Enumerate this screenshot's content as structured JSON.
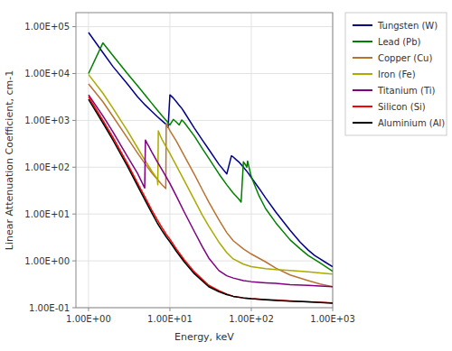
{
  "chart_data": {
    "type": "line",
    "xlabel": "Energy, keV",
    "ylabel": "Linear Attenuation Coefficient, cm-1",
    "log": true,
    "grid": true,
    "legend": "right",
    "xlim": [
      0.699842,
      1000
    ],
    "ylim": [
      0.1,
      199526.23
    ],
    "xticks": [
      {
        "value": 1,
        "label": "1.00E+00"
      },
      {
        "value": 10,
        "label": "1.00E+01"
      },
      {
        "value": 100,
        "label": "1.00E+02"
      },
      {
        "value": 1000,
        "label": "1.00E+03"
      }
    ],
    "yticks": [
      {
        "value": 0.1,
        "label": "1.00E-01"
      },
      {
        "value": 1,
        "label": "1.00E+00"
      },
      {
        "value": 10,
        "label": "1.00E+01"
      },
      {
        "value": 100,
        "label": "1.00E+02"
      },
      {
        "value": 1000,
        "label": "1.00E+03"
      },
      {
        "value": 10000,
        "label": "1.00E+04"
      },
      {
        "value": 100000,
        "label": "1.00E+05"
      }
    ],
    "series": [
      {
        "name": "Tungsten (W)",
        "color": "#00008B",
        "x": [
          1.0,
          1.5,
          2.0,
          3.0,
          4.0,
          5.0,
          6.0,
          7.0,
          8.0,
          9.0,
          9.5,
          10.0,
          11.0,
          12.0,
          13.0,
          14.0,
          15.0,
          20.0,
          25.0,
          30.0,
          40.0,
          50.0,
          57.0,
          60.0,
          65.0,
          70.0,
          80.0,
          90.0,
          100.0,
          125.0,
          150.0,
          200.0,
          300.0,
          400.0,
          500.0,
          600.0,
          700.0,
          800.0,
          1000.0
        ],
        "values": [
          75000,
          28000,
          14000,
          6000,
          3200,
          2100,
          1550,
          1200,
          980,
          820,
          700,
          3500,
          3000,
          2500,
          2100,
          1800,
          1500,
          680,
          380,
          240,
          115,
          72,
          175,
          165,
          145,
          130,
          100,
          78,
          60,
          35,
          22,
          11,
          4.5,
          2.5,
          1.7,
          1.3,
          1.1,
          0.95,
          0.75
        ]
      },
      {
        "name": "Lead (Pb)",
        "color": "#008000",
        "x": [
          1.0,
          1.5,
          2.0,
          3.0,
          4.0,
          5.0,
          6.0,
          7.0,
          8.0,
          9.0,
          10.0,
          11.0,
          12.0,
          13.0,
          14.0,
          15.0,
          20.0,
          25.0,
          30.0,
          40.0,
          50.0,
          60.0,
          70.0,
          75.0,
          80.0,
          85.0,
          88.0,
          90.0,
          100.0,
          125.0,
          150.0,
          200.0,
          300.0,
          400.0,
          500.0,
          700.0,
          1000.0
        ],
        "values": [
          10000,
          45000,
          24000,
          10000,
          5500,
          3400,
          2300,
          1650,
          1250,
          990,
          800,
          1050,
          920,
          800,
          1020,
          900,
          460,
          250,
          155,
          72,
          42,
          28,
          21,
          18,
          130,
          112,
          100,
          135,
          62,
          24,
          13,
          6.5,
          2.8,
          1.8,
          1.3,
          0.9,
          0.6
        ]
      },
      {
        "name": "Copper (Cu)",
        "color": "#B87333",
        "x": [
          1.0,
          1.5,
          2.0,
          3.0,
          4.0,
          5.0,
          6.0,
          7.0,
          8.0,
          8.9,
          9.0,
          9.5,
          10.0,
          12.0,
          15.0,
          20.0,
          25.0,
          30.0,
          40.0,
          50.0,
          60.0,
          80.0,
          100.0,
          150.0,
          200.0,
          300.0,
          500.0,
          700.0,
          1000.0
        ],
        "values": [
          6000,
          2500,
          1200,
          420,
          200,
          115,
          75,
          55,
          42,
          35,
          860,
          720,
          600,
          360,
          175,
          70,
          33,
          18,
          7.5,
          4.0,
          2.7,
          1.8,
          1.4,
          0.95,
          0.7,
          0.5,
          0.38,
          0.32,
          0.28
        ]
      },
      {
        "name": "Iron (Fe)",
        "color": "#AAAA00",
        "x": [
          1.0,
          1.5,
          2.0,
          3.0,
          4.0,
          5.0,
          6.0,
          7.0,
          7.1,
          7.2,
          7.5,
          8.0,
          9.0,
          10.0,
          12.0,
          15.0,
          20.0,
          25.0,
          30.0,
          40.0,
          50.0,
          60.0,
          80.0,
          100.0,
          150.0,
          200.0,
          300.0,
          500.0,
          700.0,
          1000.0
        ],
        "values": [
          9500,
          3800,
          1800,
          600,
          260,
          135,
          82,
          56,
          42,
          600,
          500,
          390,
          270,
          195,
          108,
          52,
          20,
          9.5,
          5.5,
          2.5,
          1.5,
          1.1,
          0.85,
          0.75,
          0.68,
          0.65,
          0.62,
          0.58,
          0.55,
          0.52
        ]
      },
      {
        "name": "Titanium (Ti)",
        "color": "#800080",
        "x": [
          1.0,
          1.5,
          2.0,
          3.0,
          4.0,
          4.9,
          5.0,
          5.2,
          5.5,
          6.0,
          7.0,
          8.0,
          9.0,
          10.0,
          12.0,
          15.0,
          20.0,
          25.0,
          30.0,
          40.0,
          50.0,
          60.0,
          80.0,
          100.0,
          150.0,
          200.0,
          300.0,
          500.0,
          700.0,
          1000.0
        ],
        "values": [
          3500,
          1250,
          560,
          170,
          74,
          36,
          380,
          330,
          280,
          210,
          130,
          88,
          62,
          45,
          24,
          11,
          4.2,
          2.0,
          1.15,
          0.62,
          0.48,
          0.43,
          0.38,
          0.36,
          0.34,
          0.33,
          0.31,
          0.3,
          0.29,
          0.28
        ]
      },
      {
        "name": "Silicon (Si)",
        "color": "#FF0000",
        "x": [
          1.0,
          1.5,
          2.0,
          3.0,
          4.0,
          5.0,
          6.0,
          7.0,
          8.0,
          9.0,
          10.0,
          12.0,
          15.0,
          20.0,
          30.0,
          40.0,
          50.0,
          60.0,
          80.0,
          100.0,
          150.0,
          200.0,
          300.0,
          500.0,
          700.0,
          1000.0
        ],
        "values": [
          3200,
          1000,
          430,
          120,
          46,
          22,
          12,
          7.5,
          5.1,
          3.7,
          2.9,
          1.8,
          1.05,
          0.58,
          0.3,
          0.23,
          0.195,
          0.175,
          0.162,
          0.156,
          0.149,
          0.145,
          0.14,
          0.134,
          0.13,
          0.126
        ]
      },
      {
        "name": "Aluminium (Al)",
        "color": "#000000",
        "x": [
          1.0,
          1.5,
          2.0,
          3.0,
          4.0,
          5.0,
          6.0,
          7.0,
          8.0,
          9.0,
          10.0,
          12.0,
          15.0,
          20.0,
          30.0,
          40.0,
          50.0,
          60.0,
          80.0,
          100.0,
          150.0,
          200.0,
          300.0,
          500.0,
          700.0,
          1000.0
        ],
        "values": [
          2800,
          880,
          375,
          105,
          40,
          19,
          10.5,
          6.4,
          4.4,
          3.25,
          2.55,
          1.6,
          0.95,
          0.53,
          0.28,
          0.22,
          0.19,
          0.175,
          0.162,
          0.155,
          0.148,
          0.143,
          0.138,
          0.133,
          0.129,
          0.125
        ]
      }
    ]
  }
}
